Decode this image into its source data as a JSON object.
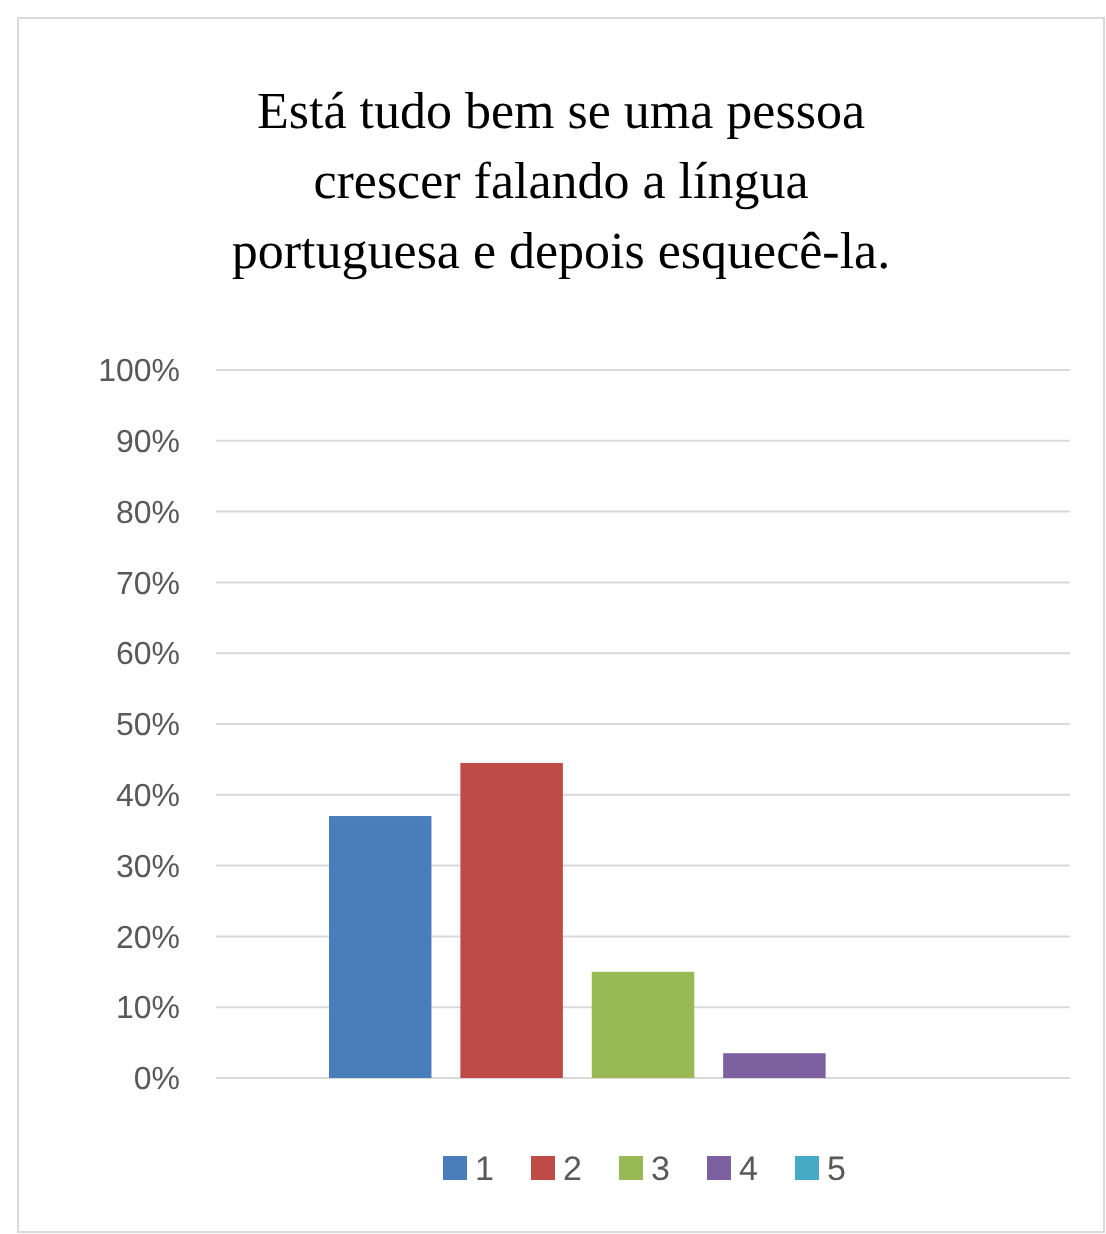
{
  "chart_data": {
    "type": "bar",
    "title": "Está tudo bem se uma pessoa crescer falando a língua portuguesa e depois esquecê-la.",
    "categories": [
      null
    ],
    "series": [
      {
        "name": "1",
        "color": "#4a7ebb",
        "values": [
          37
        ]
      },
      {
        "name": "2",
        "color": "#be4b48",
        "values": [
          44.5
        ]
      },
      {
        "name": "3",
        "color": "#98b954",
        "values": [
          15
        ]
      },
      {
        "name": "4",
        "color": "#7d60a0",
        "values": [
          3.5
        ]
      },
      {
        "name": "5",
        "color": "#46aac5",
        "values": [
          0
        ]
      }
    ],
    "ylim": [
      0,
      100
    ],
    "yticks": [
      {
        "value": 0,
        "label": "0%"
      },
      {
        "value": 10,
        "label": "10%"
      },
      {
        "value": 20,
        "label": "20%"
      },
      {
        "value": 30,
        "label": "30%"
      },
      {
        "value": 40,
        "label": "40%"
      },
      {
        "value": 50,
        "label": "50%"
      },
      {
        "value": 60,
        "label": "60%"
      },
      {
        "value": 70,
        "label": "70%"
      },
      {
        "value": 80,
        "label": "80%"
      },
      {
        "value": 90,
        "label": "90%"
      },
      {
        "value": 100,
        "label": "100%"
      }
    ],
    "grid": "y",
    "legend": "bottom"
  }
}
